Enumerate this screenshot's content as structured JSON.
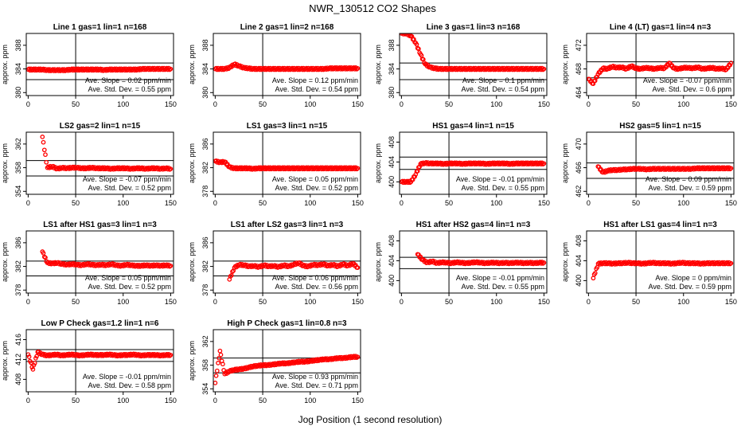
{
  "figure": {
    "title": "NWR_130512  CO2 Shapes",
    "xlabel": "Jog Position (1 second resolution)"
  },
  "colors": {
    "points": "#ff0000",
    "axes": "#000000",
    "background": "#ffffff"
  },
  "chart_data": [
    {
      "type": "scatter",
      "title": "Line 1 gas=1 lin=1 n=168",
      "ylabel": "approx. ppm",
      "xlim": [
        -2,
        153
      ],
      "ylim": [
        379.5,
        390
      ],
      "xticks": [
        0,
        50,
        100,
        150
      ],
      "yticks": [
        380,
        384,
        388
      ],
      "hlines": [
        385,
        382.2
      ],
      "vline": 50,
      "slope_text": "Ave. Slope = 0.02  ppm/min",
      "sd_text": "Ave. Std. Dev. = 0.55  ppm",
      "series": [
        {
          "x_start": 0,
          "x_end": 150,
          "y": [
            383.9,
            383.9,
            383.9,
            383.9,
            383.8,
            383.8,
            383.8,
            383.8,
            383.8,
            383.9,
            383.9,
            383.9,
            383.9,
            383.9,
            383.9,
            383.9,
            383.8,
            383.9,
            383.9,
            383.9,
            383.9,
            383.9,
            383.9,
            383.9,
            384.0,
            384.0,
            384.0,
            384.0,
            384.0,
            384.0,
            384.0
          ]
        }
      ]
    },
    {
      "type": "scatter",
      "title": "Line 2 gas=1 lin=2 n=168",
      "ylabel": "approx. ppm",
      "xlim": [
        -2,
        153
      ],
      "ylim": [
        379.5,
        390
      ],
      "xticks": [
        0,
        50,
        100,
        150
      ],
      "yticks": [
        380,
        384,
        388
      ],
      "hlines": [],
      "vline": 50,
      "slope_text": "Ave. Slope = 0.12  ppm/min",
      "sd_text": "Ave. Std. Dev. = 0.54  ppm",
      "series": [
        {
          "x_start": 0,
          "x_end": 150,
          "y": [
            384.0,
            384.0,
            384.0,
            384.2,
            384.8,
            384.5,
            384.2,
            384.1,
            384.0,
            384.0,
            384.0,
            384.0,
            384.0,
            384.0,
            384.0,
            384.0,
            384.0,
            384.0,
            384.0,
            384.0,
            384.0,
            384.0,
            384.0,
            384.0,
            384.1,
            384.1,
            384.1,
            384.1,
            384.1,
            384.1,
            384.1
          ]
        }
      ]
    },
    {
      "type": "scatter",
      "title": "Line 3 gas=1 lin=3 n=168",
      "ylabel": "approx. ppm",
      "xlim": [
        -2,
        153
      ],
      "ylim": [
        379.5,
        390
      ],
      "xticks": [
        0,
        50,
        100,
        150
      ],
      "yticks": [
        380,
        384,
        388
      ],
      "hlines": [
        385,
        382.2
      ],
      "vline": 50,
      "slope_text": "Ave. Slope = 0.1  ppm/min",
      "sd_text": "Ave. Std. Dev. = 0.54  ppm",
      "series": [
        {
          "x_start": 0,
          "x_end": 150,
          "y": [
            390,
            390,
            389.6,
            388.4,
            386.5,
            384.8,
            384.3,
            384.1,
            384.0,
            384.0,
            384.0,
            384.0,
            384.0,
            384.0,
            384.0,
            384.0,
            384.0,
            384.0,
            384.0,
            384.0,
            384.0,
            384.0,
            384.0,
            384.0,
            384.0,
            384.0,
            384.0,
            384.0,
            384.0,
            384.0,
            384.0
          ]
        }
      ]
    },
    {
      "type": "scatter",
      "title": "Line 4 (LT) gas=1 lin=4 n=3",
      "ylabel": "approx. ppm",
      "xlim": [
        -2,
        153
      ],
      "ylim": [
        463.5,
        474
      ],
      "xticks": [
        0,
        50,
        100,
        150
      ],
      "yticks": [
        464,
        468,
        472
      ],
      "hlines": [
        469.2,
        466.5
      ],
      "vline": 50,
      "slope_text": "Ave. Slope = -0.07  ppm/min",
      "sd_text": "Ave. Std. Dev. = 0.6  ppm",
      "series": [
        {
          "x_start": 0,
          "x_end": 150,
          "y": [
            466.3,
            465.5,
            467.1,
            468.1,
            468.0,
            468.4,
            468.2,
            468.3,
            468.0,
            468.5,
            468.1,
            468.0,
            468.2,
            468.1,
            468.0,
            468.2,
            468.1,
            469.0,
            468.1,
            468.0,
            468.2,
            468.2,
            468.1,
            468.3,
            468.0,
            468.1,
            468.2,
            468.0,
            468.1,
            467.9,
            469.0
          ]
        }
      ]
    },
    {
      "type": "scatter",
      "title": "LS2 gas=2 lin=1 n=15",
      "ylabel": "approx. ppm",
      "xlim": [
        -2,
        153
      ],
      "ylim": [
        353.5,
        364
      ],
      "xticks": [
        0,
        50,
        100,
        150
      ],
      "yticks": [
        354,
        358,
        362
      ],
      "hlines": [
        359.2,
        356.6
      ],
      "vline": 50,
      "slope_text": "Ave. Slope = -0.07  ppm/min",
      "sd_text": "Ave. Std. Dev. = 0.52  ppm",
      "series": [
        {
          "x_start": 15,
          "x_end": 150,
          "y": [
            363.2,
            358.0,
            358.2,
            357.8,
            358.0,
            357.9,
            358.0,
            358.0,
            357.9,
            357.9,
            358.0,
            357.9,
            357.9,
            357.9,
            357.8,
            357.9,
            357.9,
            357.9,
            357.8,
            357.9,
            357.9,
            357.8,
            357.9,
            357.9,
            357.8,
            357.9,
            357.8
          ]
        }
      ]
    },
    {
      "type": "scatter",
      "title": "LS1 gas=3 lin=1 n=15",
      "ylabel": "approx. ppm",
      "xlim": [
        -2,
        153
      ],
      "ylim": [
        377.5,
        388
      ],
      "xticks": [
        0,
        50,
        100,
        150
      ],
      "yticks": [
        378,
        382,
        386
      ],
      "hlines": [],
      "vline": 50,
      "slope_text": "Ave. Slope = 0.05  ppm/min",
      "sd_text": "Ave. Std. Dev. = 0.52  ppm",
      "series": [
        {
          "x_start": 0,
          "x_end": 150,
          "y": [
            383.1,
            382.9,
            383.0,
            382.1,
            381.9,
            381.9,
            381.9,
            381.9,
            381.8,
            381.9,
            381.9,
            381.9,
            381.9,
            381.9,
            381.9,
            381.9,
            381.9,
            381.9,
            381.9,
            381.9,
            381.9,
            381.9,
            381.9,
            381.9,
            381.9,
            381.9,
            381.9,
            381.9,
            381.9,
            381.9,
            381.9
          ]
        }
      ]
    },
    {
      "type": "scatter",
      "title": "HS1 gas=4 lin=1 n=15",
      "ylabel": "approx. ppm",
      "xlim": [
        -2,
        153
      ],
      "ylim": [
        397.5,
        410
      ],
      "xticks": [
        0,
        50,
        100,
        150
      ],
      "yticks": [
        400,
        404,
        408
      ],
      "hlines": [
        405.0,
        402.5
      ],
      "vline": 50,
      "slope_text": "Ave. Slope = -0.01  ppm/min",
      "sd_text": "Ave. Std. Dev. = 0.55  ppm",
      "series": [
        {
          "x_start": 0,
          "x_end": 150,
          "y": [
            400.0,
            400.0,
            400.0,
            401.5,
            403.6,
            403.8,
            403.7,
            403.7,
            403.7,
            403.6,
            403.7,
            403.7,
            403.7,
            403.6,
            403.7,
            403.7,
            403.7,
            403.7,
            403.6,
            403.7,
            403.7,
            403.7,
            403.7,
            403.6,
            403.7,
            403.7,
            403.7,
            403.7,
            403.7,
            403.7,
            403.7
          ]
        }
      ]
    },
    {
      "type": "scatter",
      "title": "HS2 gas=5 lin=1 n=15",
      "ylabel": "approx. ppm",
      "xlim": [
        -2,
        153
      ],
      "ylim": [
        461.5,
        472
      ],
      "xticks": [
        0,
        50,
        100,
        150
      ],
      "yticks": [
        462,
        466,
        470
      ],
      "hlines": [
        466.8,
        464.2
      ],
      "vline": 50,
      "slope_text": "Ave. Slope = 0.09  ppm/min",
      "sd_text": "Ave. Std. Dev. = 0.59  ppm",
      "series": [
        {
          "x_start": 10,
          "x_end": 150,
          "y": [
            466.2,
            465.2,
            465.5,
            465.6,
            465.6,
            465.7,
            465.7,
            465.8,
            465.8,
            465.8,
            465.7,
            465.8,
            465.8,
            465.8,
            465.8,
            465.8,
            465.8,
            465.8,
            465.8,
            465.8,
            465.9,
            465.9,
            465.9,
            465.9,
            465.9,
            465.9,
            465.9,
            465.9
          ]
        }
      ]
    },
    {
      "type": "scatter",
      "title": "LS1 after HS1 gas=3 lin=1 n=3",
      "ylabel": "approx. ppm",
      "xlim": [
        -2,
        153
      ],
      "ylim": [
        377.5,
        388
      ],
      "xticks": [
        0,
        50,
        100,
        150
      ],
      "yticks": [
        378,
        382,
        386
      ],
      "hlines": [
        382.9,
        380.4
      ],
      "vline": 50,
      "slope_text": "Ave. Slope = 0.05  ppm/min",
      "sd_text": "Ave. Std. Dev. = 0.52  ppm",
      "series": [
        {
          "x_start": 15,
          "x_end": 150,
          "y": [
            384.5,
            382.6,
            382.5,
            382.6,
            382.4,
            382.3,
            382.4,
            382.3,
            382.2,
            382.4,
            382.3,
            382.2,
            382.3,
            382.2,
            382.4,
            382.2,
            382.1,
            382.3,
            382.2,
            382.1,
            382.1,
            382.2,
            382.1,
            382.2,
            382.1,
            382.2,
            382.1
          ]
        }
      ]
    },
    {
      "type": "scatter",
      "title": "LS1 after LS2 gas=3 lin=1 n=3",
      "ylabel": "approx. ppm",
      "xlim": [
        -2,
        153
      ],
      "ylim": [
        377.5,
        388
      ],
      "xticks": [
        0,
        50,
        100,
        150
      ],
      "yticks": [
        378,
        382,
        386
      ],
      "hlines": [
        382.9,
        380.4
      ],
      "vline": 50,
      "slope_text": "Ave. Slope = 0.06  ppm/min",
      "sd_text": "Ave. Std. Dev. = 0.56  ppm",
      "series": [
        {
          "x_start": 15,
          "x_end": 150,
          "y": [
            379.8,
            381.8,
            382.3,
            382.2,
            382.0,
            382.1,
            381.9,
            382.2,
            382.0,
            382.1,
            381.9,
            382.2,
            382.0,
            382.3,
            382.6,
            382.1,
            382.0,
            382.3,
            382.2,
            382.4,
            382.1,
            382.3,
            382.0,
            382.4,
            382.1,
            382.5,
            381.8
          ]
        }
      ]
    },
    {
      "type": "scatter",
      "title": "HS1 after HS2 gas=4 lin=1 n=3",
      "ylabel": "approx. ppm",
      "xlim": [
        -2,
        153
      ],
      "ylim": [
        397.5,
        410
      ],
      "xticks": [
        0,
        50,
        100,
        150
      ],
      "yticks": [
        400,
        404,
        408
      ],
      "hlines": [
        404.7,
        402.4
      ],
      "vline": 50,
      "slope_text": "Ave. Slope = -0.01  ppm/min",
      "sd_text": "Ave. Std. Dev. = 0.55  ppm",
      "series": [
        {
          "x_start": 17,
          "x_end": 150,
          "y": [
            405.3,
            404.2,
            403.6,
            403.9,
            403.5,
            403.7,
            403.6,
            403.5,
            403.7,
            403.6,
            403.5,
            403.6,
            403.7,
            403.6,
            403.5,
            403.6,
            403.6,
            403.5,
            403.6,
            403.5,
            403.6,
            403.6,
            403.5,
            403.6,
            403.5,
            403.6,
            403.6
          ]
        }
      ]
    },
    {
      "type": "scatter",
      "title": "HS1 after LS1 gas=4 lin=1 n=3",
      "ylabel": "approx. ppm",
      "xlim": [
        -2,
        153
      ],
      "ylim": [
        397.5,
        410
      ],
      "xticks": [
        0,
        50,
        100,
        150
      ],
      "yticks": [
        400,
        404,
        408
      ],
      "hlines": [],
      "vline": 50,
      "slope_text": "Ave. Slope = 0  ppm/min",
      "sd_text": "Ave. Std. Dev. = 0.59  ppm",
      "series": [
        {
          "x_start": 5,
          "x_end": 150,
          "y": [
            400.5,
            403.4,
            403.5,
            403.5,
            403.4,
            403.5,
            403.5,
            403.6,
            403.5,
            403.5,
            403.4,
            403.5,
            403.6,
            403.5,
            403.5,
            403.5,
            403.4,
            403.5,
            403.6,
            403.5,
            403.5,
            403.5,
            403.4,
            403.5,
            403.5,
            403.5,
            403.5,
            403.5,
            403.5
          ]
        }
      ]
    },
    {
      "type": "scatter",
      "title": "Low P Check gas=1.2 lin=1 n=6",
      "ylabel": "approx. ppm",
      "xlim": [
        -2,
        153
      ],
      "ylim": [
        405.5,
        418
      ],
      "xticks": [
        0,
        50,
        100,
        150
      ],
      "yticks": [
        408,
        412,
        416
      ],
      "hlines": [
        414.0,
        411.6
      ],
      "vline": 50,
      "slope_text": "Ave. Slope = -0.01  ppm/min",
      "sd_text": "Ave. Std. Dev. = 0.58  ppm",
      "series": [
        {
          "x_start": 0,
          "x_end": 150,
          "y": [
            413.0,
            410.0,
            413.5,
            413.0,
            412.8,
            412.9,
            413.0,
            412.8,
            412.9,
            413.0,
            412.9,
            412.8,
            412.9,
            413.0,
            412.9,
            412.9,
            412.9,
            413.0,
            412.9,
            412.8,
            412.9,
            412.9,
            413.0,
            412.9,
            412.8,
            412.9,
            412.9,
            412.9,
            412.8,
            412.9,
            412.9
          ]
        }
      ]
    },
    {
      "type": "scatter",
      "title": "High P Check gas=1 lin=0.8 n=3",
      "ylabel": "approx. ppm",
      "xlim": [
        -2,
        153
      ],
      "ylim": [
        353.5,
        364
      ],
      "xticks": [
        0,
        50,
        100,
        150
      ],
      "yticks": [
        354,
        358,
        362
      ],
      "hlines": [
        359.2,
        356.7
      ],
      "vline": 50,
      "slope_text": "Ave. Slope = 0.93  ppm/min",
      "sd_text": "Ave. Std. Dev. = 0.71  ppm",
      "series": [
        {
          "x_start": 0,
          "x_end": 150,
          "y": [
            355.0,
            360.4,
            356.5,
            357.0,
            357.2,
            357.3,
            357.4,
            357.6,
            357.8,
            357.9,
            358.0,
            358.0,
            358.1,
            358.2,
            358.3,
            358.3,
            358.4,
            358.5,
            358.6,
            358.6,
            358.7,
            358.8,
            358.9,
            359.0,
            359.0,
            359.1,
            359.2,
            359.2,
            359.3,
            359.4,
            359.4
          ]
        }
      ]
    }
  ]
}
